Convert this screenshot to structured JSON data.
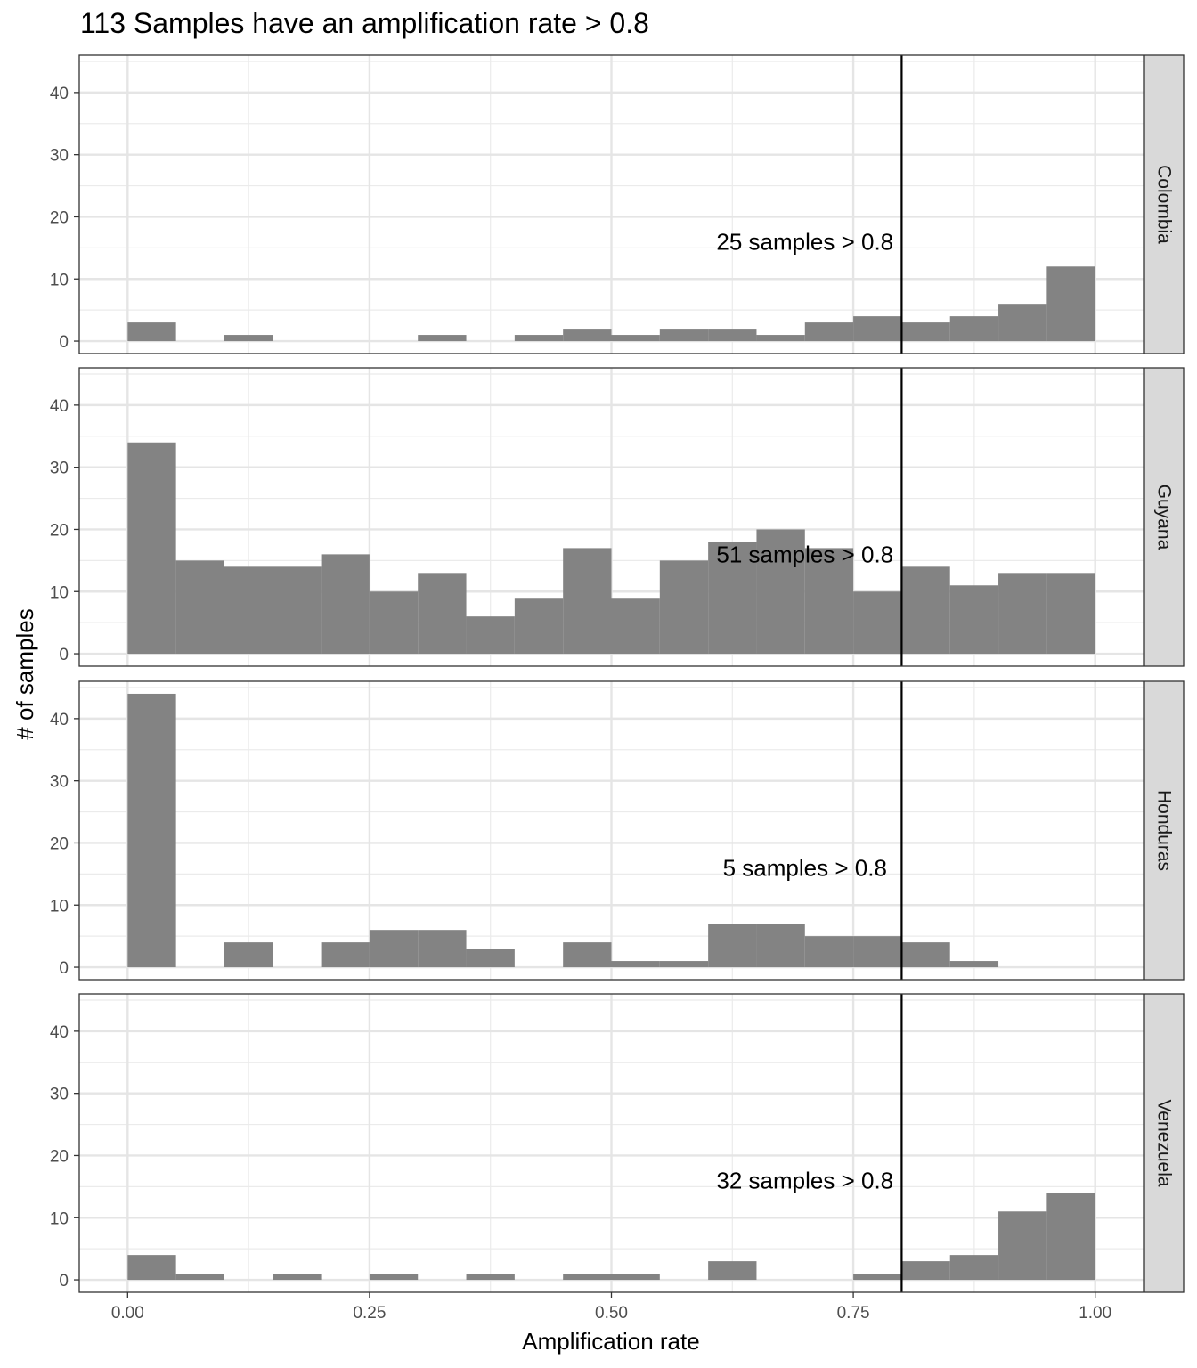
{
  "chart_data": {
    "type": "bar",
    "title": "113 Samples have an amplification rate > 0.8",
    "xlabel": "Amplification rate",
    "ylabel": "# of samples",
    "xlim": [
      -0.05,
      1.05
    ],
    "ylim": [
      -2,
      46
    ],
    "x_ticks": [
      0.0,
      0.25,
      0.5,
      0.75,
      1.0
    ],
    "x_tick_labels": [
      "0.00",
      "0.25",
      "0.50",
      "0.75",
      "1.00"
    ],
    "y_ticks": [
      0,
      10,
      20,
      30,
      40
    ],
    "y_tick_labels": [
      "0",
      "10",
      "20",
      "30",
      "40"
    ],
    "bin_width": 0.05,
    "bin_starts": [
      0.0,
      0.05,
      0.1,
      0.15,
      0.2,
      0.25,
      0.3,
      0.35,
      0.4,
      0.45,
      0.5,
      0.55,
      0.6,
      0.65,
      0.7,
      0.75,
      0.8,
      0.85,
      0.9,
      0.95
    ],
    "threshold": 0.8,
    "grid": true,
    "bar_color": "#7f7f7f",
    "strip_color": "#d9d9d9",
    "panels": [
      {
        "name": "Colombia",
        "annotation": "25 samples > 0.8",
        "values": [
          3,
          0,
          1,
          0,
          0,
          0,
          1,
          0,
          1,
          2,
          1,
          2,
          2,
          1,
          3,
          4,
          3,
          4,
          6,
          12
        ]
      },
      {
        "name": "Guyana",
        "annotation": "51 samples > 0.8",
        "values": [
          34,
          15,
          14,
          14,
          16,
          10,
          13,
          6,
          9,
          17,
          9,
          15,
          18,
          20,
          17,
          10,
          14,
          11,
          13,
          13
        ]
      },
      {
        "name": "Honduras",
        "annotation": "5 samples > 0.8",
        "values": [
          44,
          0,
          4,
          0,
          4,
          6,
          6,
          3,
          0,
          4,
          1,
          1,
          7,
          7,
          5,
          5,
          4,
          1,
          0,
          0
        ]
      },
      {
        "name": "Venezuela",
        "annotation": "32 samples > 0.8",
        "values": [
          4,
          1,
          0,
          1,
          0,
          1,
          0,
          1,
          0,
          1,
          1,
          0,
          3,
          0,
          0,
          1,
          3,
          4,
          11,
          14
        ]
      }
    ]
  }
}
